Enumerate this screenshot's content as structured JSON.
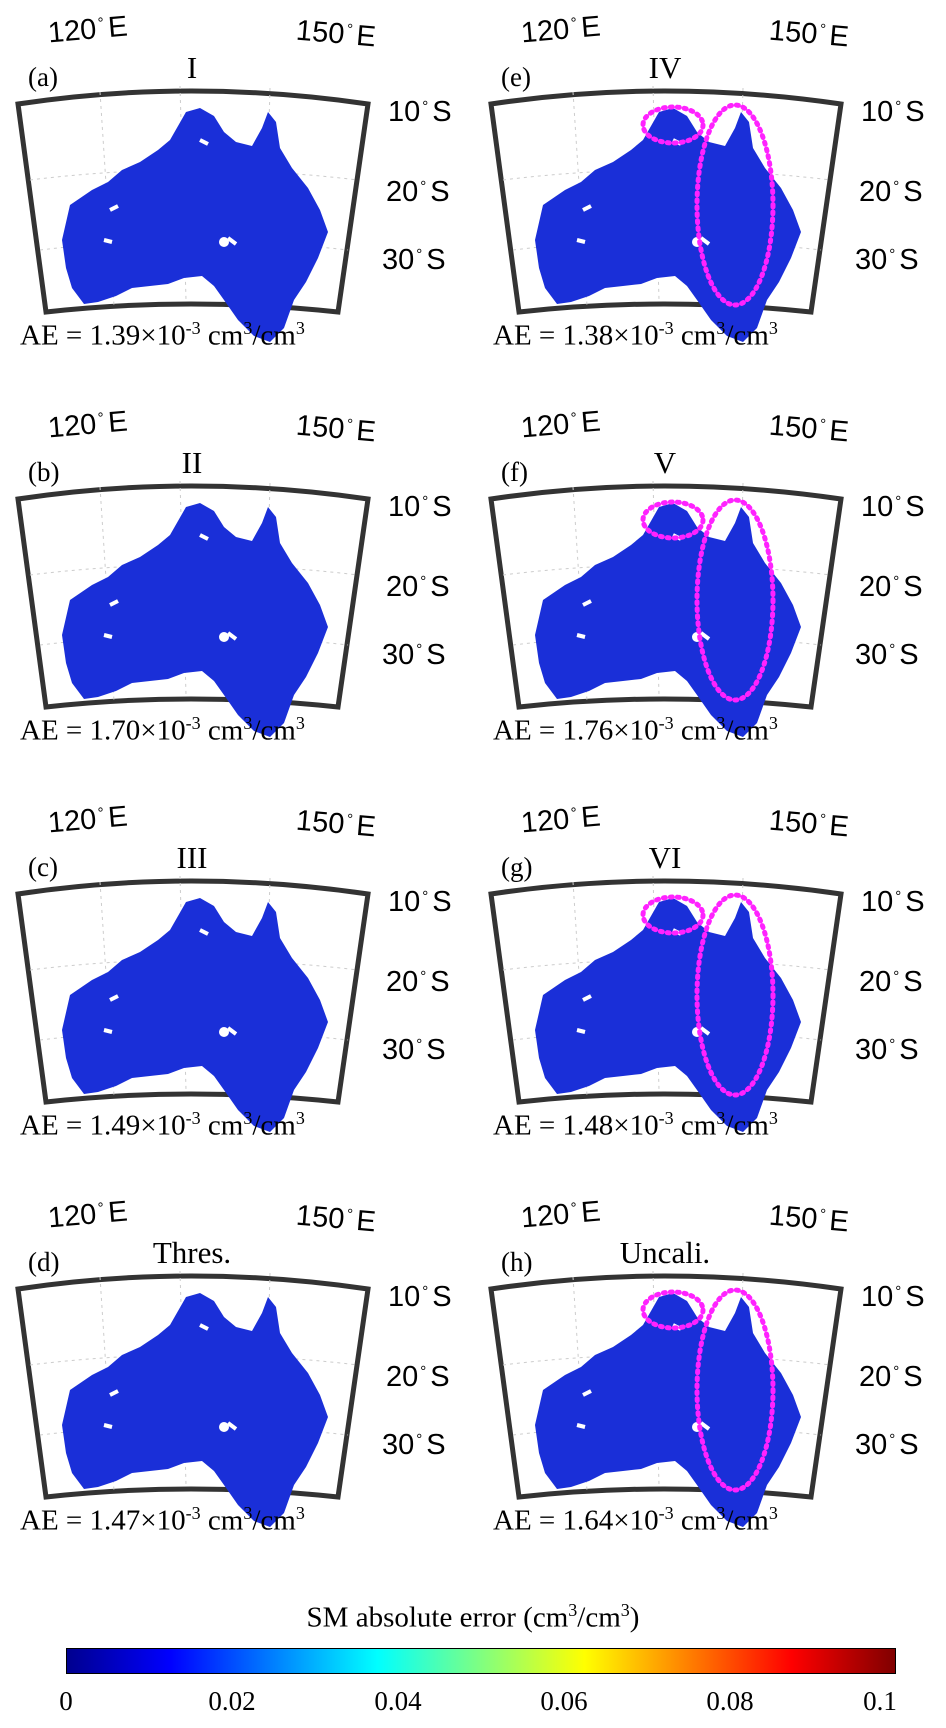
{
  "labels": {
    "lon_west": "120",
    "lon_east": "150",
    "lon_unit": "E",
    "deg": "°",
    "lat_10": "10",
    "lat_20": "20",
    "lat_30": "30",
    "lat_unit": "S",
    "ae_prefix": "AE = ",
    "ae_exp": "×10",
    "ae_exp_power": "-3",
    "ae_unit_a": " cm",
    "ae_unit_b": "/cm",
    "unit_power": "3"
  },
  "panels": [
    {
      "id": "a",
      "label": "(a)",
      "title": "I",
      "ae": "1.39",
      "highlight": false
    },
    {
      "id": "e",
      "label": "(e)",
      "title": "IV",
      "ae": "1.38",
      "highlight": true
    },
    {
      "id": "b",
      "label": "(b)",
      "title": "II",
      "ae": "1.70",
      "highlight": false
    },
    {
      "id": "f",
      "label": "(f)",
      "title": "V",
      "ae": "1.76",
      "highlight": true
    },
    {
      "id": "c",
      "label": "(c)",
      "title": "III",
      "ae": "1.49",
      "highlight": false
    },
    {
      "id": "g",
      "label": "(g)",
      "title": "VI",
      "ae": "1.48",
      "highlight": true
    },
    {
      "id": "d",
      "label": "(d)",
      "title": "Thres.",
      "ae": "1.47",
      "highlight": false
    },
    {
      "id": "h",
      "label": "(h)",
      "title": "Uncali.",
      "ae": "1.64",
      "highlight": true
    }
  ],
  "colorbar": {
    "title_a": "SM absolute error  (cm",
    "title_b": "/cm",
    "title_c": ")",
    "power": "3",
    "ticks": [
      "0",
      "0.02",
      "0.04",
      "0.06",
      "0.08",
      "0.1"
    ],
    "min": 0,
    "max": 0.1
  },
  "colors": {
    "map_fill": "#1a2fd8",
    "frame": "#333333",
    "highlight": "#ff22ff"
  }
}
